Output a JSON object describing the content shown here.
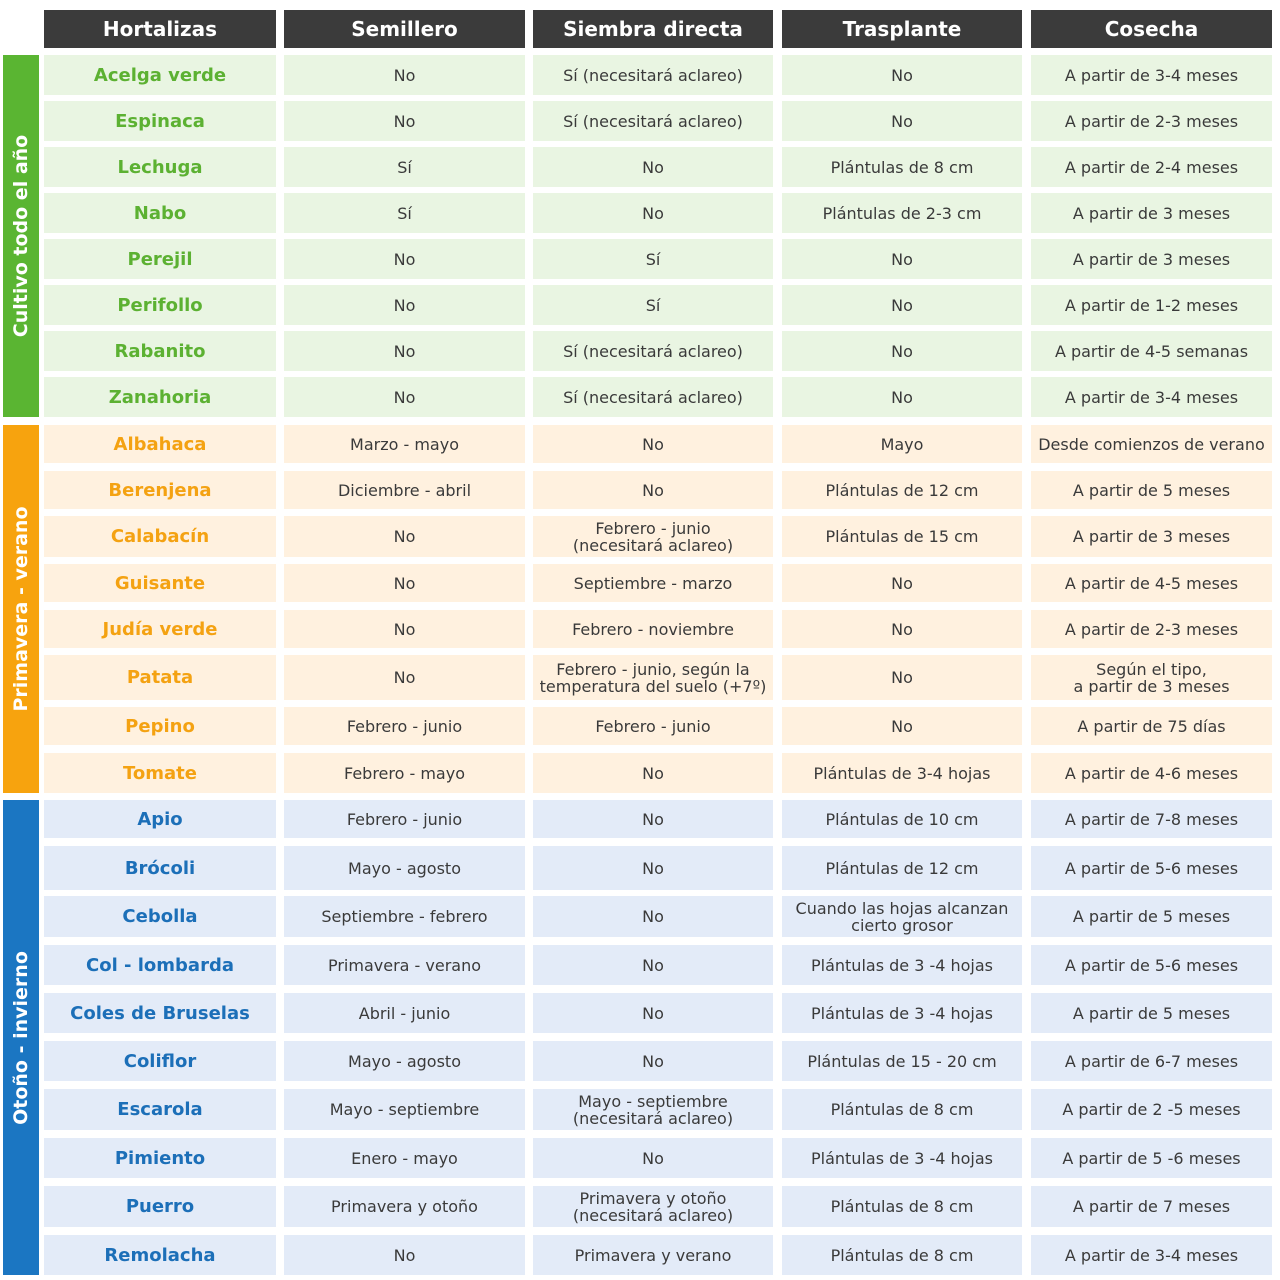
{
  "header": [
    "Hortalizas",
    "Semillero",
    "Siembra directa",
    "Trasplante",
    "Cosecha"
  ],
  "groups": [
    {
      "label": "Cultivo todo el año",
      "rows": [
        [
          "Acelga verde",
          "No",
          "Sí (necesitará aclareo)",
          "No",
          "A partir de 3-4 meses"
        ],
        [
          "Espinaca",
          "No",
          "Sí (necesitará aclareo)",
          "No",
          "A partir de 2-3 meses"
        ],
        [
          "Lechuga",
          "Sí",
          "No",
          "Plántulas de 8 cm",
          "A partir de 2-4 meses"
        ],
        [
          "Nabo",
          "Sí",
          "No",
          "Plántulas de 2-3 cm",
          "A partir de 3 meses"
        ],
        [
          "Perejil",
          "No",
          "Sí",
          "No",
          "A partir de 3 meses"
        ],
        [
          "Perifollo",
          "No",
          "Sí",
          "No",
          "A partir de 1-2 meses"
        ],
        [
          "Rabanito",
          "No",
          "Sí (necesitará aclareo)",
          "No",
          "A partir de 4-5 semanas"
        ],
        [
          "Zanahoria",
          "No",
          "Sí (necesitará aclareo)",
          "No",
          "A partir de 3-4 meses"
        ]
      ]
    },
    {
      "label": "Primavera - verano",
      "rows": [
        [
          "Albahaca",
          "Marzo - mayo",
          "No",
          "Mayo",
          "Desde comienzos de verano"
        ],
        [
          "Berenjena",
          "Diciembre - abril",
          "No",
          "Plántulas de 12 cm",
          "A partir de 5 meses"
        ],
        [
          "Calabacín",
          "No",
          "Febrero - junio\n(necesitará aclareo)",
          "Plántulas de 15 cm",
          "A partir de 3 meses"
        ],
        [
          "Guisante",
          "No",
          "Septiembre - marzo",
          "No",
          "A partir de 4-5 meses"
        ],
        [
          "Judía verde",
          "No",
          "Febrero - noviembre",
          "No",
          "A partir de 2-3 meses"
        ],
        [
          "Patata",
          "No",
          "Febrero - junio, según la\ntemperatura del suelo (+7º)",
          "No",
          "Según el tipo,\na partir de 3 meses"
        ],
        [
          "Pepino",
          "Febrero - junio",
          "Febrero - junio",
          "No",
          "A partir de 75 días"
        ],
        [
          "Tomate",
          "Febrero - mayo",
          "No",
          "Plántulas de 3-4 hojas",
          "A partir de 4-6 meses"
        ]
      ]
    },
    {
      "label": "Otoño - invierno",
      "rows": [
        [
          "Apio",
          "Febrero - junio",
          "No",
          "Plántulas de 10 cm",
          "A partir de 7-8 meses"
        ],
        [
          "Brócoli",
          "Mayo - agosto",
          "No",
          "Plántulas de 12 cm",
          "A partir de 5-6 meses"
        ],
        [
          "Cebolla",
          "Septiembre - febrero",
          "No",
          "Cuando las hojas alcanzan\ncierto grosor",
          "A partir de 5 meses"
        ],
        [
          "Col - lombarda",
          "Primavera - verano",
          "No",
          "Plántulas de 3 -4 hojas",
          "A partir de 5-6 meses"
        ],
        [
          "Coles de Bruselas",
          "Abril - junio",
          "No",
          "Plántulas de 3 -4 hojas",
          "A partir de 5 meses"
        ],
        [
          "Coliflor",
          "Mayo - agosto",
          "No",
          "Plántulas de 15 - 20 cm",
          "A partir de 6-7 meses"
        ],
        [
          "Escarola",
          "Mayo - septiembre",
          "Mayo - septiembre\n(necesitará aclareo)",
          "Plántulas de 8 cm",
          "A partir de 2 -5 meses"
        ],
        [
          "Pimiento",
          "Enero - mayo",
          "No",
          "Plántulas de 3 -4 hojas",
          "A partir de 5 -6 meses"
        ],
        [
          "Puerro",
          "Primavera y otoño",
          "Primavera y otoño\n(necesitará aclareo)",
          "Plántulas de 8 cm",
          "A partir de 7 meses"
        ],
        [
          "Remolacha",
          "No",
          "Primavera y verano",
          "Plántulas de 8 cm",
          "A partir de 3-4 meses"
        ]
      ]
    }
  ]
}
